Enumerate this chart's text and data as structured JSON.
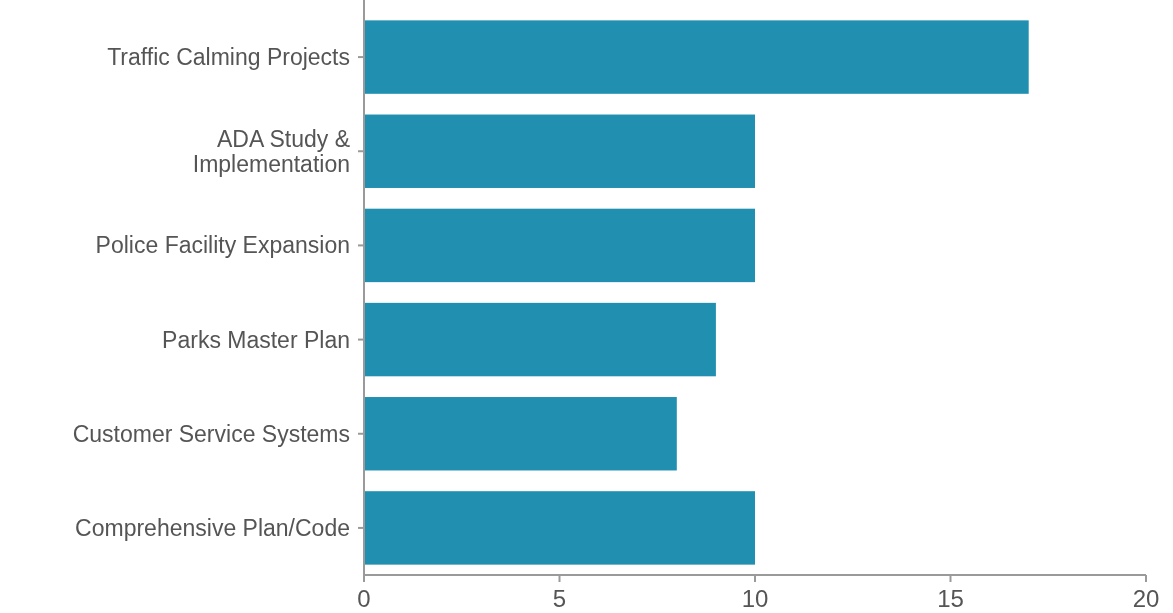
{
  "chart_data": {
    "type": "bar",
    "orientation": "horizontal",
    "categories": [
      "Traffic Calming Projects",
      "ADA Study & Implementation",
      "Police Facility Expansion",
      "Parks Master Plan",
      "Customer Service Systems",
      "Comprehensive Plan/Code"
    ],
    "values": [
      17,
      10,
      10,
      9,
      8,
      10
    ],
    "color": "#2190b0",
    "xlim": [
      0,
      20
    ],
    "xticks": [
      0,
      5,
      10,
      15,
      20
    ],
    "grid": false
  }
}
